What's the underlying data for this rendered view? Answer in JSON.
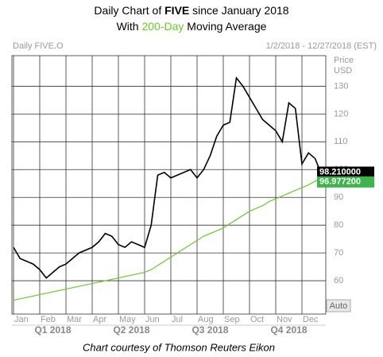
{
  "chart_data": {
    "type": "line",
    "title_parts": [
      "Daily Chart of ",
      "FIVE",
      " since January 2018"
    ],
    "subtitle_parts": [
      "With ",
      "200-Day",
      " Moving Average"
    ],
    "symbol": "Daily FIVE.O",
    "date_range": "1/2/2018 - 12/27/2018 (EST)",
    "axis_label": [
      "Price",
      "USD"
    ],
    "auto_button": "Auto",
    "footer": "Chart courtesy of Thomson Reuters Eikon",
    "categories": [
      "Jan",
      null,
      null,
      null,
      "Feb",
      null,
      null,
      null,
      "Mar",
      null,
      null,
      null,
      "Apr",
      null,
      null,
      null,
      "May",
      null,
      null,
      null,
      "Jun",
      null,
      null,
      null,
      "Jul",
      null,
      null,
      null,
      "Aug",
      null,
      null,
      null,
      "Sep",
      null,
      null,
      null,
      "Oct",
      null,
      null,
      null,
      "Nov",
      null,
      null,
      null,
      "Dec",
      null,
      null,
      null
    ],
    "quarters": [
      "Q1 2018",
      "Q2 2018",
      "Q3 2018",
      "Q4 2018"
    ],
    "series": [
      {
        "name": "FIVE.O",
        "color": "#000000",
        "values": [
          72,
          68,
          67,
          66,
          64,
          61,
          63,
          65,
          66,
          68,
          70,
          71,
          72,
          74,
          77,
          76,
          73,
          72,
          74,
          73,
          72,
          80,
          98,
          99,
          97,
          98,
          99,
          100,
          97,
          100,
          105,
          112,
          116,
          117,
          133,
          130,
          126,
          122,
          118,
          116,
          114,
          110,
          124,
          122,
          102,
          106,
          104,
          98.21
        ]
      },
      {
        "name": "200-Day",
        "color": "#66cc22",
        "values": [
          53,
          53.5,
          54,
          54.5,
          55,
          55.5,
          56,
          56.5,
          57,
          57.5,
          58,
          58.5,
          59,
          59.5,
          60,
          60.5,
          61,
          61.5,
          62,
          62.5,
          63,
          64,
          65.5,
          67,
          68.5,
          70,
          71.5,
          73,
          74.5,
          76,
          77,
          78,
          79,
          80.5,
          82,
          83.5,
          85,
          86,
          87,
          88.5,
          89.5,
          90.5,
          91.5,
          92.5,
          93.5,
          94.5,
          95.8,
          96.9772
        ]
      }
    ],
    "price_tags": [
      {
        "value": 98.21,
        "label": "98.210000",
        "color": "#000000"
      },
      {
        "value": 96.9772,
        "label": "96.977200",
        "color": "#3cb64a"
      }
    ],
    "ylim": [
      48,
      141
    ],
    "yticks": [
      60,
      70,
      80,
      90,
      100,
      110,
      120,
      130
    ],
    "grid": true
  }
}
